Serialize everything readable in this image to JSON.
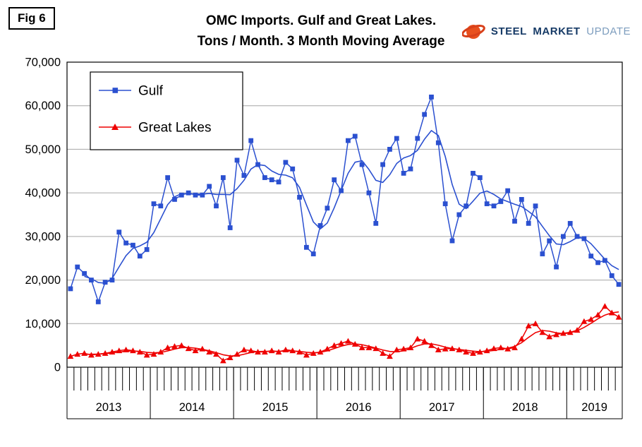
{
  "fig_label": "Fig 6",
  "title": {
    "line1": "OMC Imports. Gulf and Great Lakes.",
    "line2": "Tons / Month. 3 Month Moving Average"
  },
  "logo": {
    "steel": "STEEL",
    "market": "MARKET",
    "update": "UPDATE"
  },
  "chart_data": {
    "type": "line",
    "title": "OMC Imports. Gulf and Great Lakes. Tons / Month. 3 Month Moving Average",
    "ylabel": "Tons / Month",
    "ylim": [
      0,
      70000
    ],
    "ytick_interval": 10000,
    "grid": true,
    "legend_position": "top-left-inside",
    "moving_average_window": 3,
    "years": [
      {
        "label": "2013",
        "months": 12
      },
      {
        "label": "2014",
        "months": 12
      },
      {
        "label": "2015",
        "months": 12
      },
      {
        "label": "2016",
        "months": 12
      },
      {
        "label": "2017",
        "months": 12
      },
      {
        "label": "2018",
        "months": 12
      },
      {
        "label": "2019",
        "months": 8
      }
    ],
    "series": [
      {
        "name": "Gulf",
        "color": "#2b50d0",
        "marker": "square",
        "values": [
          18000,
          23000,
          21500,
          20000,
          15000,
          19500,
          20000,
          31000,
          28500,
          28000,
          25500,
          27000,
          37500,
          37000,
          43500,
          38500,
          39500,
          40000,
          39500,
          39500,
          41500,
          37000,
          43500,
          32000,
          47500,
          44000,
          52000,
          46500,
          43500,
          43000,
          42500,
          47000,
          45500,
          39000,
          27500,
          26000,
          32500,
          36500,
          43000,
          40500,
          52000,
          53000,
          46500,
          40000,
          33000,
          46500,
          50000,
          52500,
          44500,
          45500,
          52500,
          58000,
          62000,
          51500,
          37500,
          29000,
          35000,
          37000,
          44500,
          43500,
          37500,
          37000,
          38000,
          40500,
          33500,
          38500,
          33000,
          37000,
          26000,
          29000,
          23000,
          30000,
          33000,
          30000,
          29500,
          25500,
          24000,
          24500,
          21000,
          19000
        ]
      },
      {
        "name": "Great Lakes",
        "color": "#ee0000",
        "marker": "triangle",
        "values": [
          2500,
          3000,
          3200,
          2800,
          3000,
          3200,
          3500,
          3800,
          4000,
          3800,
          3500,
          2800,
          3000,
          3500,
          4500,
          4800,
          5000,
          4300,
          3800,
          4200,
          3500,
          3000,
          1500,
          2200,
          3000,
          4000,
          3800,
          3500,
          3500,
          3800,
          3500,
          4000,
          3800,
          3500,
          2800,
          3200,
          3500,
          4200,
          5000,
          5500,
          6000,
          5300,
          4500,
          4500,
          4300,
          3200,
          2500,
          4000,
          4200,
          4500,
          6500,
          6000,
          5000,
          4000,
          4200,
          4300,
          4000,
          3500,
          3200,
          3500,
          3800,
          4300,
          4500,
          4200,
          4500,
          6500,
          9500,
          10000,
          8000,
          7000,
          7500,
          7800,
          8000,
          8500,
          10500,
          11000,
          12000,
          14000,
          12500,
          11500
        ]
      }
    ]
  }
}
